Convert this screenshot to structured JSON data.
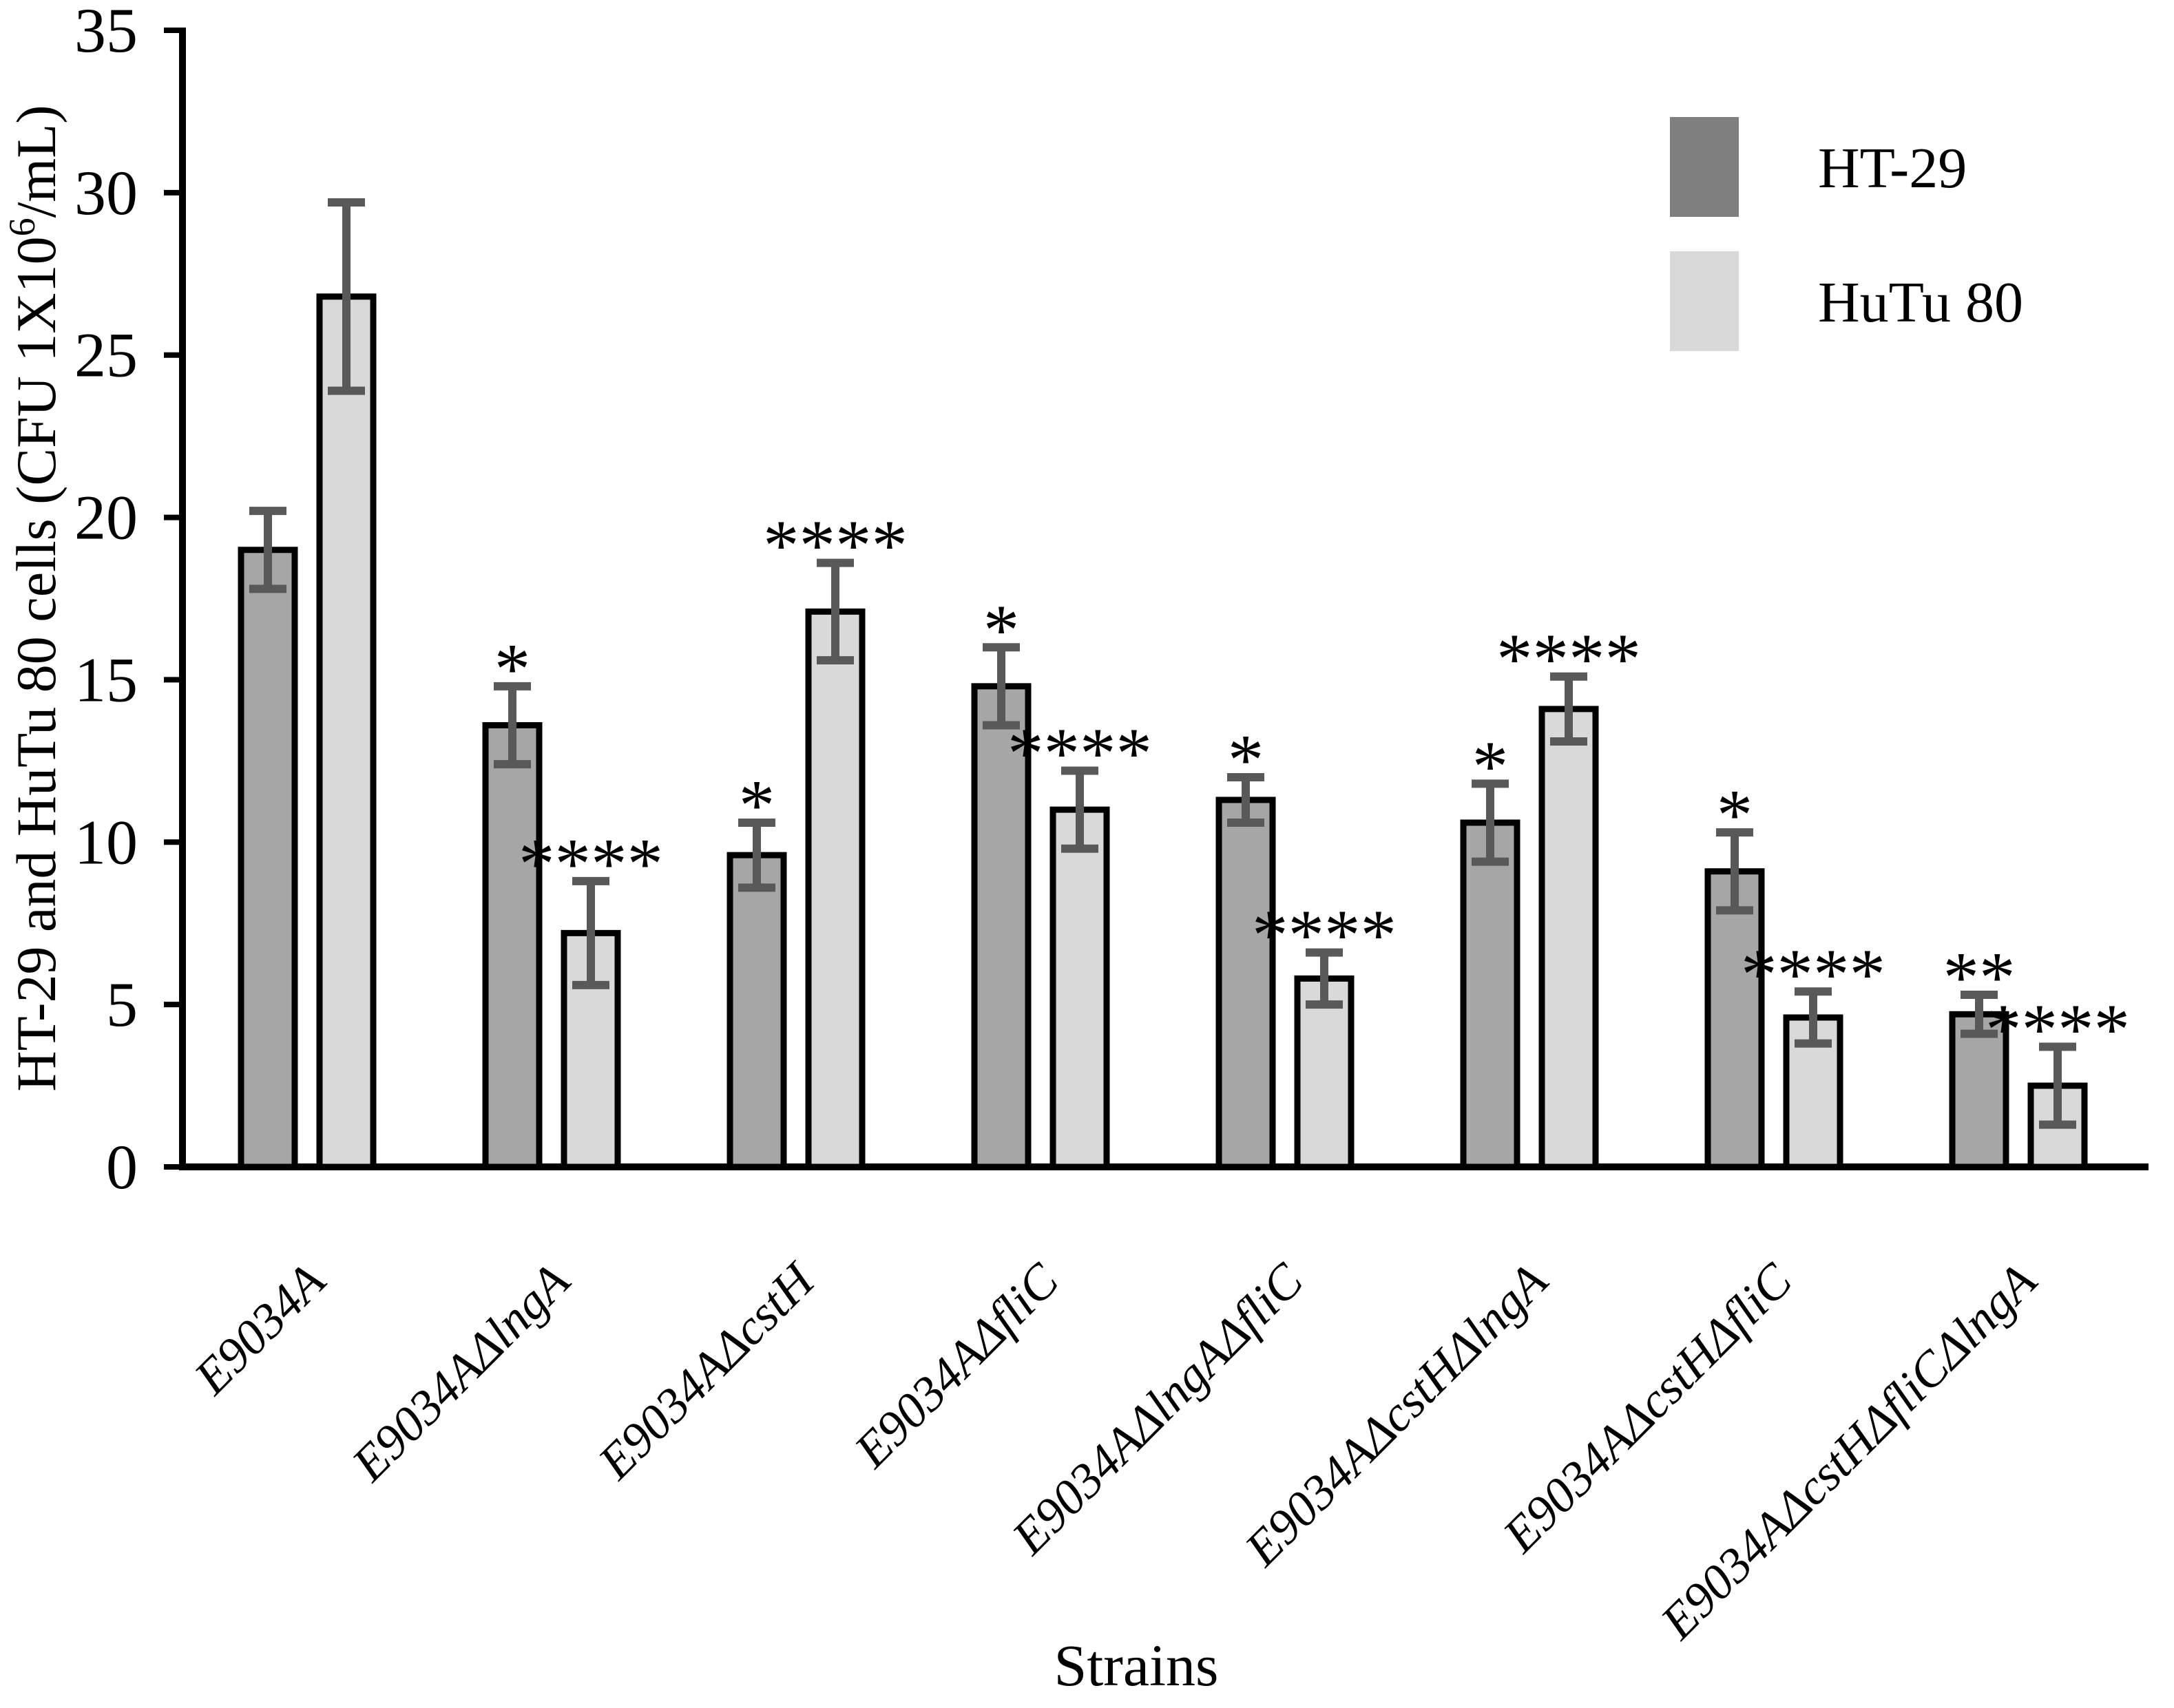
{
  "figure": {
    "background": "#ffffff",
    "x_title": "Strains",
    "y_title": "HT-29 and HuTu 80 cells (CFU 1X10⁶/mL)",
    "y_title_parts": {
      "prefix": "HT-29 and HuTu 80 cells (CFU 1X10",
      "sup": "6",
      "suffix": "/mL)"
    },
    "legend": {
      "position": "top-right",
      "items": [
        {
          "label": "HT-29",
          "swatch_color": "#7f7f7f"
        },
        {
          "label": "HuTu 80",
          "swatch_color": "#d9d9d9"
        }
      ]
    }
  },
  "chart_data": {
    "type": "bar",
    "title": "",
    "xlabel": "Strains",
    "ylabel": "HT-29 and HuTu 80 cells (CFU 1X10^6/mL)",
    "ylim": [
      0,
      35
    ],
    "ytick_step": 5,
    "ytick_labels": [
      "0",
      "5",
      "10",
      "15",
      "20",
      "25",
      "30",
      "35"
    ],
    "grid": false,
    "legend_position": "top-right",
    "bar_border_color": "#000000",
    "error_bar_color": "#595959",
    "significance_marker_color": "#000000",
    "categories": [
      "E9034A",
      "E9034AΔlngA",
      "E9034AΔcstH",
      "E9034AΔfliC",
      "E9034AΔlngAΔfliC",
      "E9034AΔcstHΔlngA",
      "E9034AΔcstHΔfliC",
      "E9034AΔcstHΔfliCΔlngA"
    ],
    "series": [
      {
        "name": "HT-29",
        "fill": "#a6a6a6",
        "values": [
          19.0,
          13.6,
          9.6,
          14.8,
          11.3,
          10.6,
          9.1,
          4.7
        ],
        "errors": [
          1.2,
          1.2,
          1.0,
          1.2,
          0.7,
          1.2,
          1.2,
          0.6
        ],
        "significance": [
          "",
          "*",
          "*",
          "*",
          "*",
          "*",
          "*",
          "**"
        ]
      },
      {
        "name": "HuTu 80",
        "fill": "#d9d9d9",
        "values": [
          26.8,
          7.2,
          17.1,
          11.0,
          5.8,
          14.1,
          4.6,
          2.5
        ],
        "errors": [
          2.9,
          1.6,
          1.5,
          1.2,
          0.8,
          1.0,
          0.8,
          1.2
        ],
        "significance": [
          "",
          "****",
          "****",
          "****",
          "****",
          "****",
          "****",
          "****"
        ]
      }
    ]
  }
}
